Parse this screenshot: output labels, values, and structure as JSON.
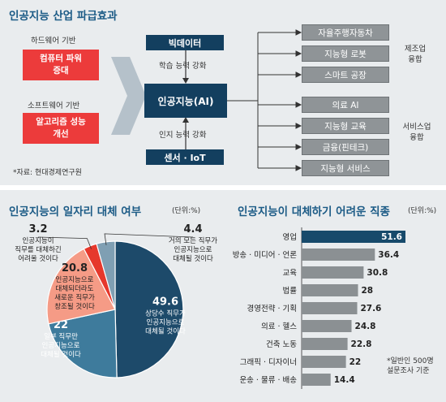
{
  "top": {
    "title": "인공지능 산업 파급효과",
    "hardware_label": "하드웨어 기반",
    "hardware_box": [
      "컴퓨터 파워",
      "증대"
    ],
    "software_label": "소프트웨어 기반",
    "software_box": [
      "알고리즘 성능",
      "개선"
    ],
    "source": "*자료: 현대경제연구원",
    "bigdata": "빅데이터",
    "ai": "인공지능(AI)",
    "sensor": "센서 · IoT",
    "learning": "학습 능력 강화",
    "cognition": "인지 능력 강화",
    "manufacturing_items": [
      "자율주행자동차",
      "지능형 로봇",
      "스마트 공장"
    ],
    "manufacturing_label": [
      "제조업",
      "융합"
    ],
    "service_items": [
      "의료 AI",
      "지능형 교육",
      "금융(핀테크)",
      "지능형 서비스"
    ],
    "service_label": [
      "서비스업",
      "융합"
    ]
  },
  "chart_data": [
    {
      "type": "pie",
      "title": "인공지능의 일자리 대체 여부",
      "unit": "(단위:%)",
      "slices": [
        {
          "value": 49.6,
          "label": [
            "상당수 직무가",
            "인공지능으로",
            "대체될 것이다"
          ],
          "color": "#1d4a6a"
        },
        {
          "value": 22,
          "label": [
            "일부 직무만",
            "인공지능으로",
            "대체될 것이다"
          ],
          "color": "#3e7b9c"
        },
        {
          "value": 20.8,
          "label": [
            "인공지능으로",
            "대체되더라도",
            "새로운 직무가",
            "창조될 것이다"
          ],
          "color": "#f59b86"
        },
        {
          "value": 3.2,
          "label": [
            "인공지능이",
            "직무를 대체하긴",
            "어려울 것이다"
          ],
          "color": "#e6382c"
        },
        {
          "value": 4.4,
          "label": [
            "거의 모든 직무가",
            "인공지능으로",
            "대체될 것이다"
          ],
          "color": "#7f9fb3"
        }
      ]
    },
    {
      "type": "bar",
      "orientation": "horizontal",
      "title": "인공지능이 대체하기 어려운 직종",
      "unit": "(단위:%)",
      "categories": [
        "영업",
        "방송 · 미디어 · 언론",
        "교육",
        "법률",
        "경영전략 · 기획",
        "의료 · 헬스",
        "건축 노동",
        "그래픽 · 디자이너",
        "운송 · 물류 · 배송"
      ],
      "values": [
        51.6,
        36.4,
        30.8,
        28,
        27.6,
        24.8,
        22.8,
        22,
        14.4
      ],
      "colors": {
        "first": "#174a6b",
        "rest": "#8b9093"
      },
      "note": [
        "*일반인 500명",
        "설문조사 기준"
      ]
    }
  ]
}
